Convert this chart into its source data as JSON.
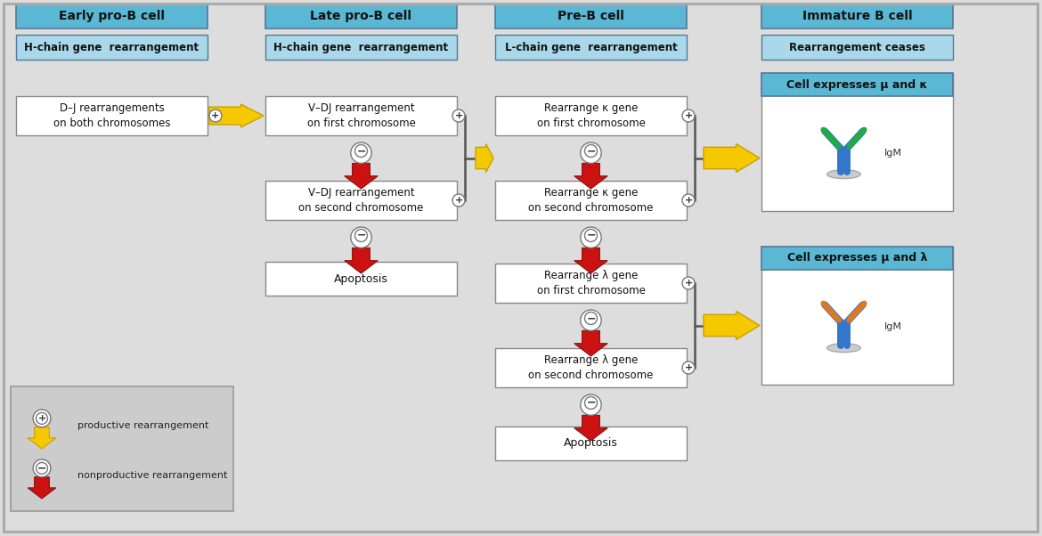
{
  "blue_header": "#5BB8D4",
  "light_blue_sub": "#A8D8EA",
  "yellow_arrow": "#F5C800",
  "yellow_arrow_edge": "#C8A000",
  "red_arrow": "#CC1111",
  "red_arrow_edge": "#881111",
  "antibody_blue": "#3377CC",
  "antibody_green": "#22AA44",
  "antibody_orange": "#E07820",
  "white": "#FFFFFF",
  "bg": "#DDDDDD",
  "legend_bg": "#CCCCCC",
  "border": "#888888",
  "text_dark": "#111111",
  "header_titles": [
    "Early pro-B cell",
    "Late pro-B cell",
    "Pre-B cell",
    "Immature B cell"
  ],
  "header_subtitles": [
    "H-chain gene  rearrangement",
    "H-chain gene  rearrangement",
    "L-chain gene  rearrangement",
    "Rearrangement ceases"
  ]
}
